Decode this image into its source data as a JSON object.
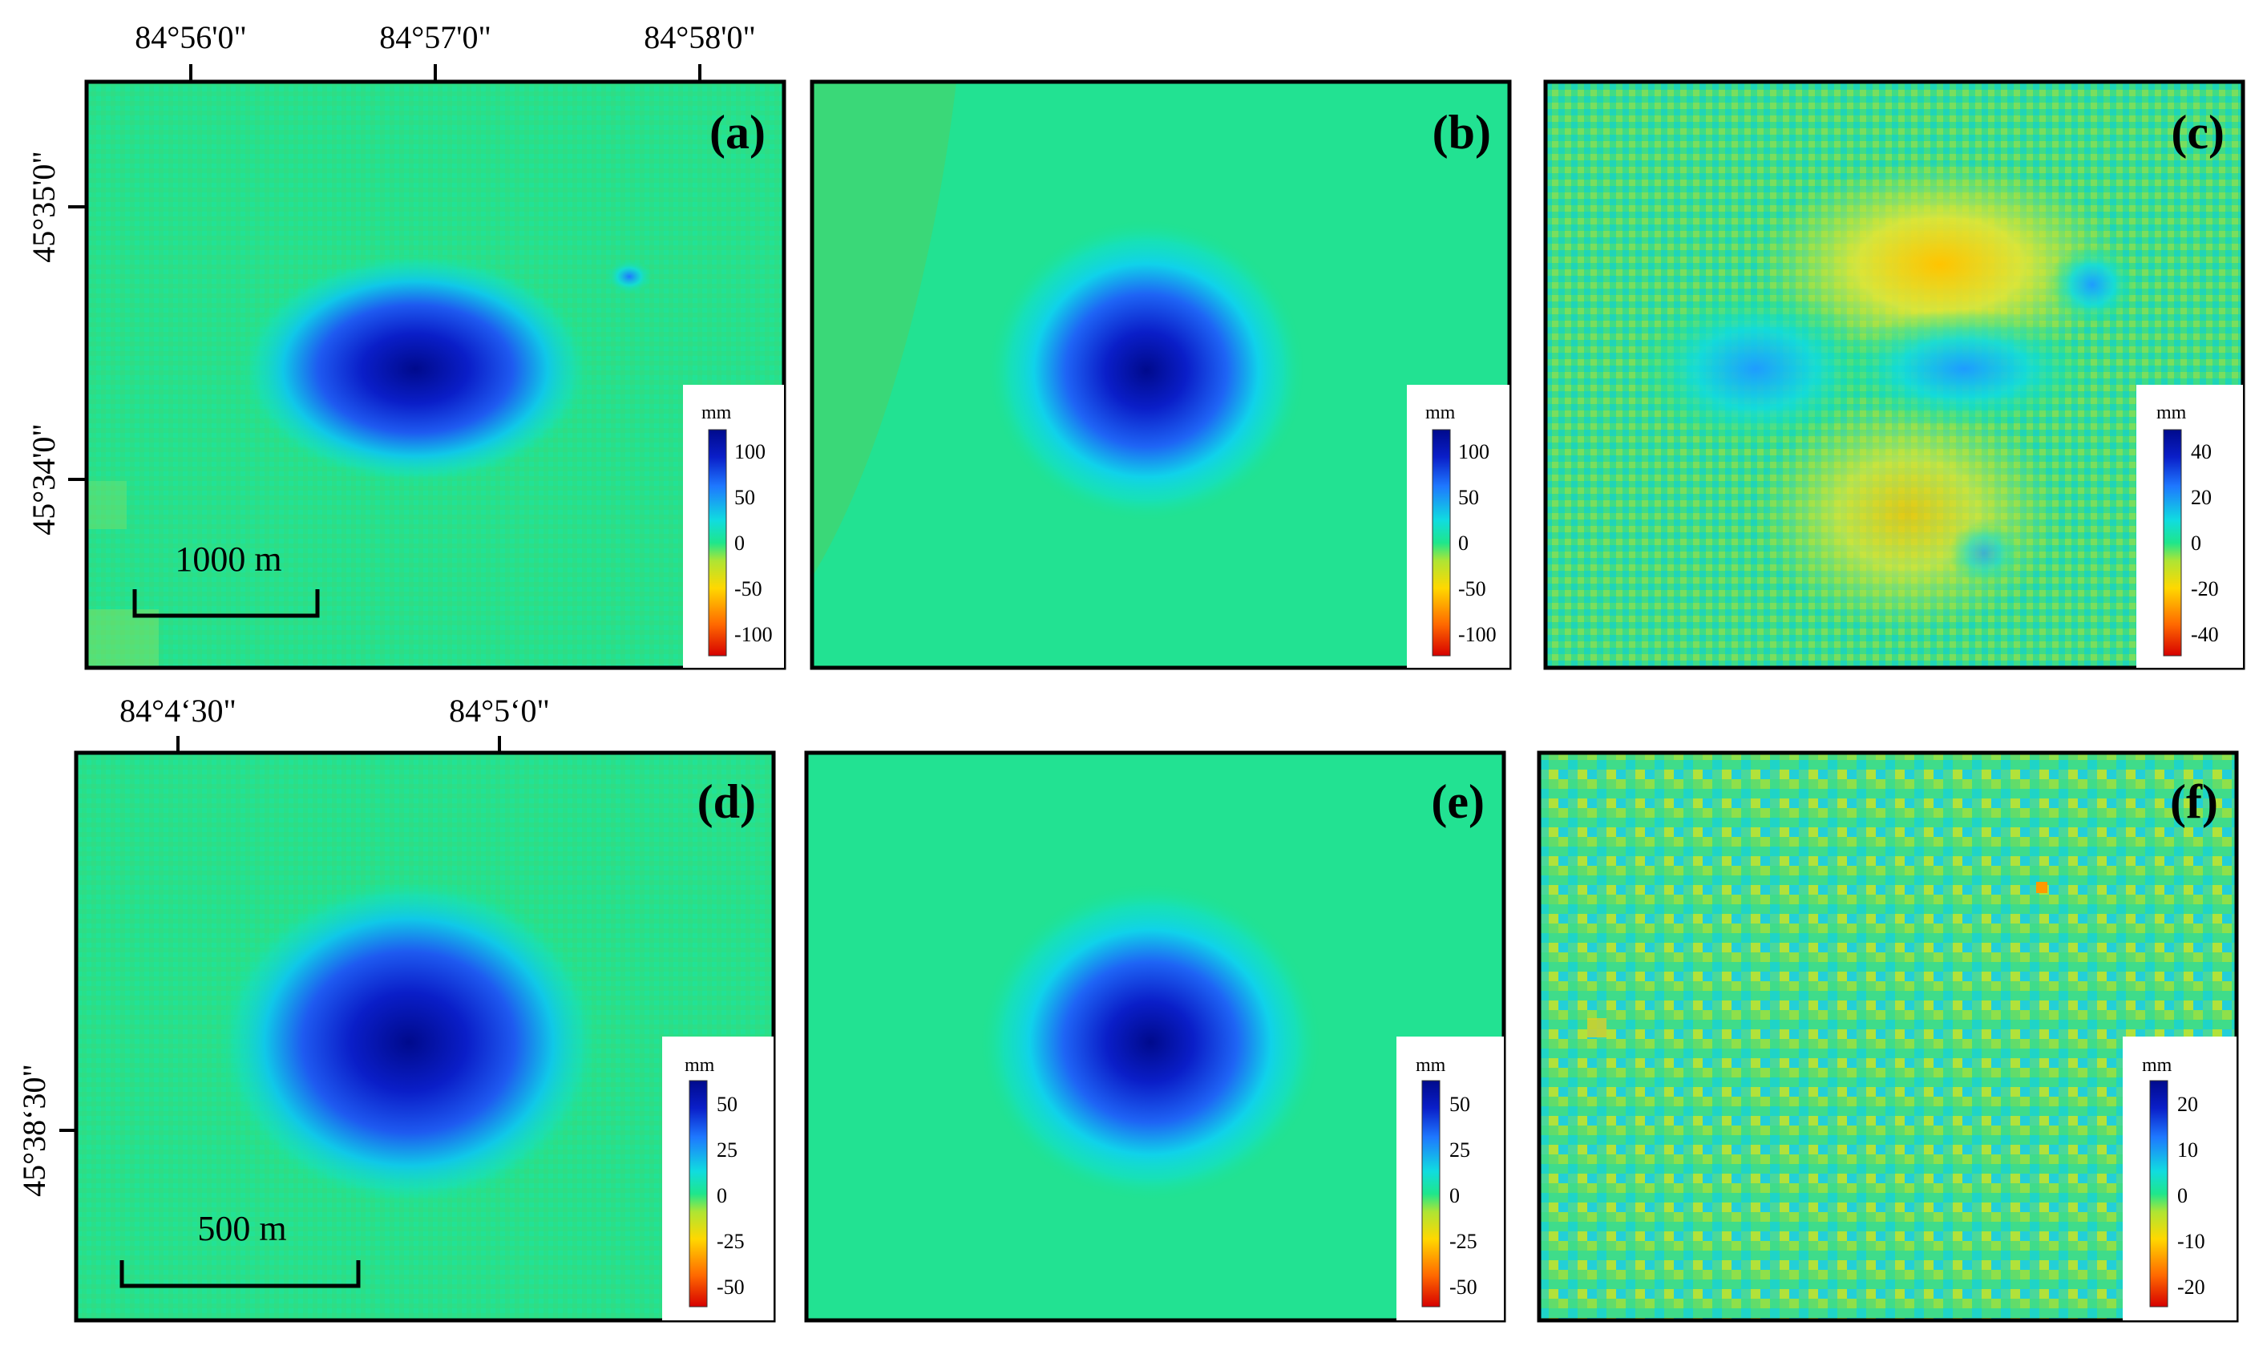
{
  "figure": {
    "top_row": {
      "lon_ticks": [
        "84°56'0\"",
        "84°57'0\"",
        "84°58'0\""
      ],
      "lat_ticks": [
        "45°35'0\"",
        "45°34'0\""
      ],
      "scale_bar": "1000 m",
      "panels": [
        {
          "letter": "(a)",
          "kind": "observed",
          "unit": "mm",
          "cb_ticks": [
            "100",
            "50",
            "0",
            "-50",
            "-100"
          ],
          "cb_range": [
            -120,
            120
          ]
        },
        {
          "letter": "(b)",
          "kind": "model",
          "unit": "mm",
          "cb_ticks": [
            "100",
            "50",
            "0",
            "-50",
            "-100"
          ],
          "cb_range": [
            -120,
            120
          ]
        },
        {
          "letter": "(c)",
          "kind": "residual",
          "unit": "mm",
          "cb_ticks": [
            "40",
            "20",
            "0",
            "-20",
            "-40"
          ],
          "cb_range": [
            -48,
            48
          ]
        }
      ]
    },
    "bottom_row": {
      "lon_ticks": [
        "84°4‘30\"",
        "84°5‘0\""
      ],
      "lat_ticks": [
        "45°38‘30\""
      ],
      "scale_bar": "500 m",
      "panels": [
        {
          "letter": "(d)",
          "kind": "observed",
          "unit": "mm",
          "cb_ticks": [
            "50",
            "25",
            "0",
            "-25",
            "-50"
          ],
          "cb_range": [
            -60,
            60
          ]
        },
        {
          "letter": "(e)",
          "kind": "model",
          "unit": "mm",
          "cb_ticks": [
            "50",
            "25",
            "0",
            "-25",
            "-50"
          ],
          "cb_range": [
            -60,
            60
          ]
        },
        {
          "letter": "(f)",
          "kind": "residual",
          "unit": "mm",
          "cb_ticks": [
            "20",
            "10",
            "0",
            "-10",
            "-20"
          ],
          "cb_range": [
            -24,
            24
          ]
        }
      ]
    },
    "colors": {
      "colormap": [
        "#d60000",
        "#ff6a00",
        "#ffd800",
        "#aee534",
        "#1ee68c",
        "#10dce0",
        "#1e78ff",
        "#0a1ec8",
        "#000a8c"
      ],
      "frame": "#000000",
      "background": "#ffffff"
    }
  }
}
